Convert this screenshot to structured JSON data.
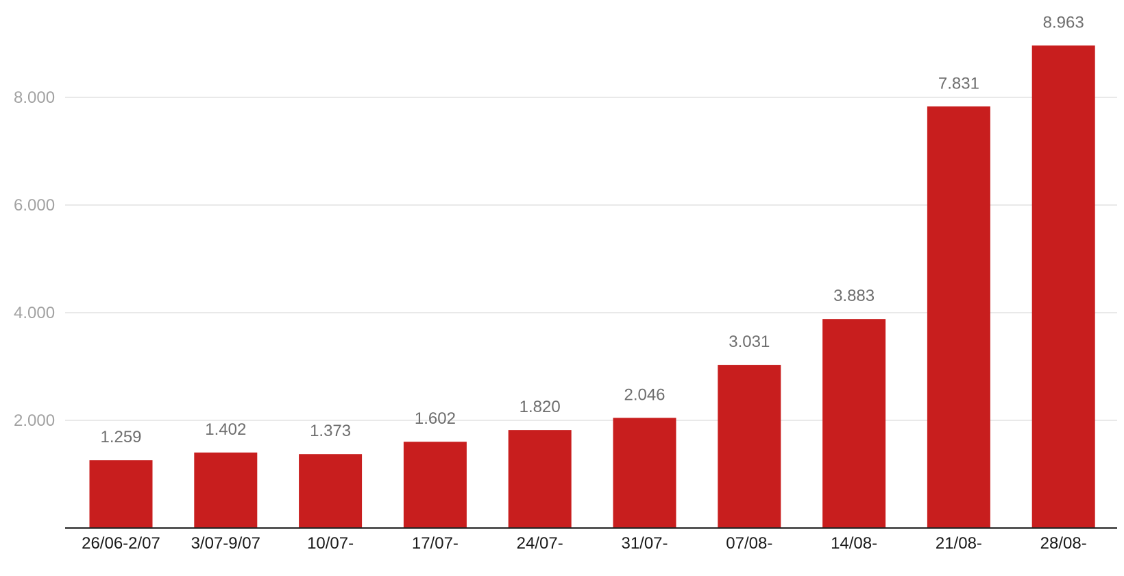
{
  "chart_data": {
    "type": "bar",
    "categories": [
      "26/06-2/07",
      "3/07-9/07",
      "10/07-",
      "17/07-",
      "24/07-",
      "31/07-",
      "07/08-",
      "14/08-",
      "21/08-",
      "28/08-"
    ],
    "values": [
      1259,
      1402,
      1373,
      1602,
      1820,
      2046,
      3031,
      3883,
      7831,
      8963
    ],
    "value_labels": [
      "1.259",
      "1.402",
      "1.373",
      "1.602",
      "1.820",
      "2.046",
      "3.031",
      "3.883",
      "7.831",
      "8.963"
    ],
    "title": "",
    "xlabel": "",
    "ylabel": "",
    "ylim": [
      0,
      9200
    ],
    "yticks": [
      2000,
      4000,
      6000,
      8000
    ],
    "ytick_labels": [
      "2.000",
      "4.000",
      "6.000",
      "8.000"
    ],
    "grid": true,
    "legend": "none",
    "colors": {
      "bar": "#c81e1e",
      "grid": "#e2e2e2",
      "baseline": "#222222",
      "ytick_text": "#a2a2a2",
      "xtick_text": "#1a1a1a",
      "data_label_text": "#6e6e6e"
    }
  }
}
